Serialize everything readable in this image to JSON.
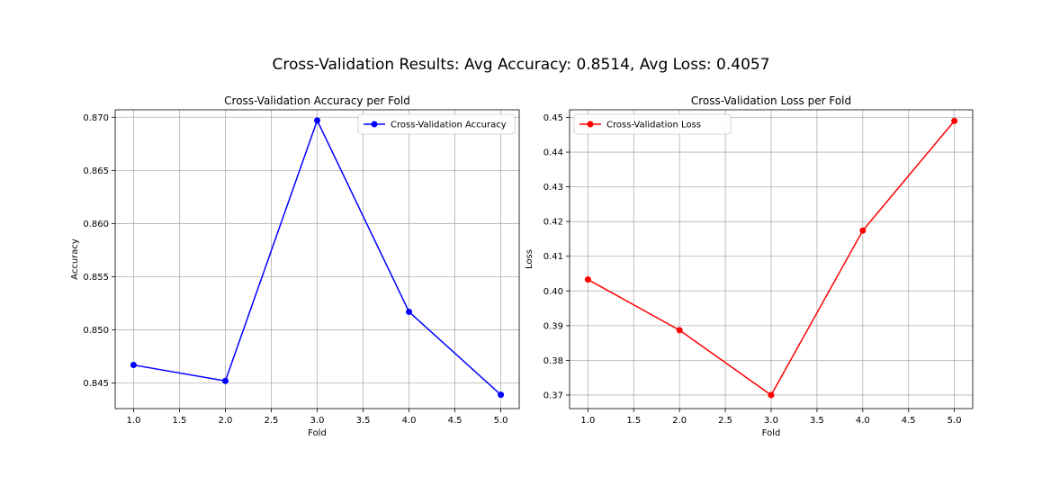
{
  "figure": {
    "suptitle": "Cross-Validation Results: Avg Accuracy: 0.8514, Avg Loss: 0.4057"
  },
  "chart_data": [
    {
      "type": "line",
      "title": "Cross-Validation Accuracy per Fold",
      "xlabel": "Fold",
      "ylabel": "Accuracy",
      "x": [
        1,
        2,
        3,
        4,
        5
      ],
      "series": [
        {
          "name": "Cross-Validation Accuracy",
          "values": [
            0.8467,
            0.8452,
            0.8697,
            0.8517,
            0.8439
          ],
          "color": "#0000ff",
          "marker": "circle"
        }
      ],
      "xlim": [
        0.8,
        5.2
      ],
      "ylim": [
        0.8426,
        0.8707
      ],
      "xticks": [
        1.0,
        1.5,
        2.0,
        2.5,
        3.0,
        3.5,
        4.0,
        4.5,
        5.0
      ],
      "xtick_labels": [
        "1.0",
        "1.5",
        "2.0",
        "2.5",
        "3.0",
        "3.5",
        "4.0",
        "4.5",
        "5.0"
      ],
      "yticks": [
        0.845,
        0.85,
        0.855,
        0.86,
        0.865,
        0.87
      ],
      "ytick_labels": [
        "0.845",
        "0.850",
        "0.855",
        "0.860",
        "0.865",
        "0.870"
      ],
      "grid": true,
      "legend": "top-right"
    },
    {
      "type": "line",
      "title": "Cross-Validation Loss per Fold",
      "xlabel": "Fold",
      "ylabel": "Loss",
      "x": [
        1,
        2,
        3,
        4,
        5
      ],
      "series": [
        {
          "name": "Cross-Validation Loss",
          "values": [
            0.4033,
            0.3887,
            0.37,
            0.4174,
            0.449
          ],
          "color": "#ff0000",
          "marker": "circle"
        }
      ],
      "xlim": [
        0.8,
        5.2
      ],
      "ylim": [
        0.3661,
        0.4522
      ],
      "xticks": [
        1.0,
        1.5,
        2.0,
        2.5,
        3.0,
        3.5,
        4.0,
        4.5,
        5.0
      ],
      "xtick_labels": [
        "1.0",
        "1.5",
        "2.0",
        "2.5",
        "3.0",
        "3.5",
        "4.0",
        "4.5",
        "5.0"
      ],
      "yticks": [
        0.37,
        0.38,
        0.39,
        0.4,
        0.41,
        0.42,
        0.43,
        0.44,
        0.45
      ],
      "ytick_labels": [
        "0.37",
        "0.38",
        "0.39",
        "0.40",
        "0.41",
        "0.42",
        "0.43",
        "0.44",
        "0.45"
      ],
      "grid": true,
      "legend": "top-left"
    }
  ]
}
